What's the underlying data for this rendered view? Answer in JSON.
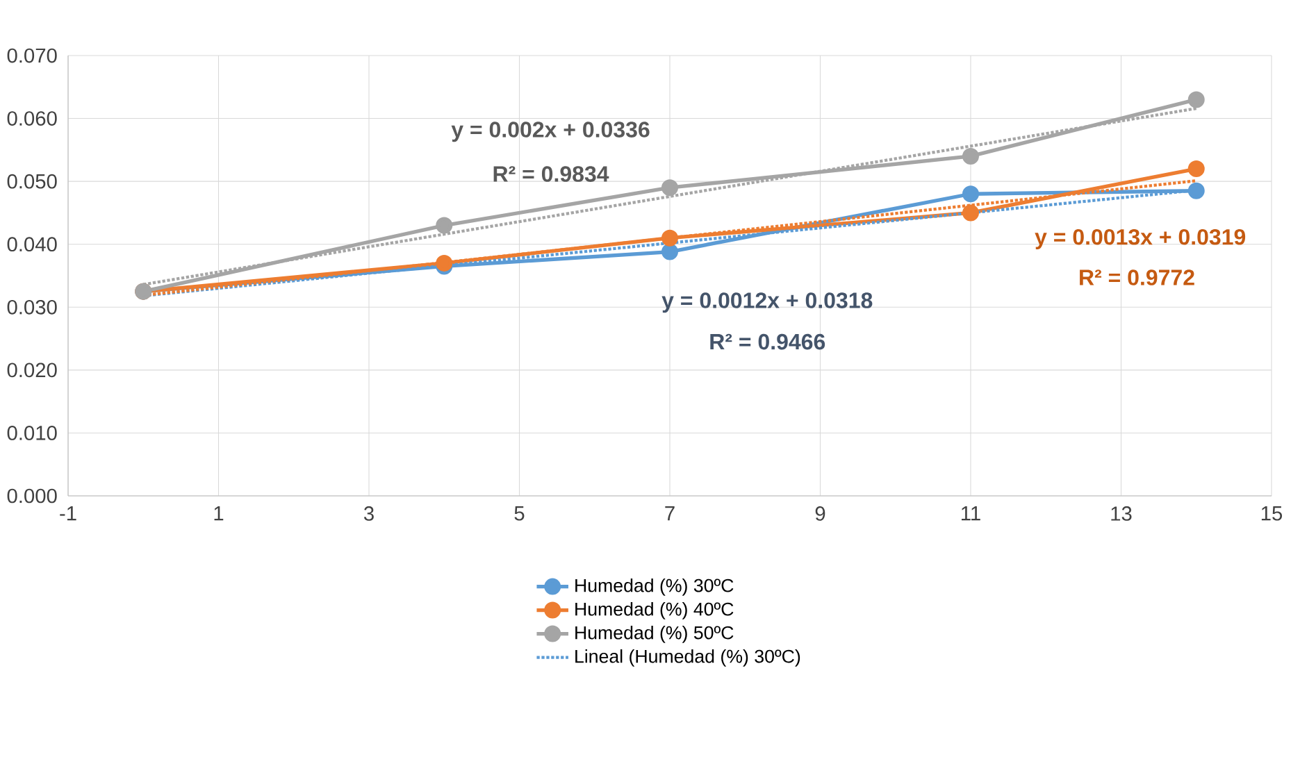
{
  "chart_data": {
    "type": "line",
    "x": [
      0,
      4,
      7,
      11,
      14
    ],
    "series": [
      {
        "name": "Humedad (%) 30ºC",
        "color": "#5b9bd5",
        "values": [
          0.0325,
          0.0365,
          0.0388,
          0.048,
          0.0485
        ],
        "marker": "circle",
        "line_style": "solid"
      },
      {
        "name": "Humedad (%) 40ºC",
        "color": "#ed7d31",
        "values": [
          0.0325,
          0.037,
          0.041,
          0.045,
          0.052
        ],
        "marker": "circle",
        "line_style": "solid"
      },
      {
        "name": "Humedad (%) 50ºC",
        "color": "#a5a5a5",
        "values": [
          0.0325,
          0.043,
          0.049,
          0.054,
          0.063
        ],
        "marker": "circle",
        "line_style": "solid"
      },
      {
        "name": "Lineal (Humedad (%) 30ºC)",
        "color": "#5b9bd5",
        "values": [
          0.0318,
          0.0366,
          0.0402,
          0.045,
          0.0486
        ],
        "marker": "none",
        "line_style": "dotted"
      },
      {
        "color": "#ed7d31",
        "values": [
          0.0319,
          0.0371,
          0.041,
          0.0462,
          0.0501
        ],
        "marker": "none",
        "line_style": "dotted"
      },
      {
        "color": "#a5a5a5",
        "values": [
          0.0336,
          0.0416,
          0.0476,
          0.0556,
          0.0616
        ],
        "marker": "none",
        "line_style": "dotted"
      }
    ],
    "xlim": [
      -1,
      15
    ],
    "xticks": [
      -1,
      1,
      3,
      5,
      7,
      9,
      11,
      13,
      15
    ],
    "ylim": [
      0,
      0.07
    ],
    "yticks": [
      {
        "value": 0,
        "label": "0.000"
      },
      {
        "value": 0.01,
        "label": "0.010"
      },
      {
        "value": 0.02,
        "label": "0.020"
      },
      {
        "value": 0.03,
        "label": "0.030"
      },
      {
        "value": 0.04,
        "label": "0.040"
      },
      {
        "value": 0.05,
        "label": "0.050"
      },
      {
        "value": 0.06,
        "label": "0.060"
      },
      {
        "value": 0.07,
        "label": "0.070"
      }
    ],
    "grid": true,
    "legend": "bottom",
    "annotations": [
      "y = 0.002x + 0.0336",
      "R² = 0.9834",
      "y = 0.0012x + 0.0318",
      "R² = 0.9466",
      "y = 0.0013x + 0.0319",
      "R² = 0.9772"
    ]
  }
}
